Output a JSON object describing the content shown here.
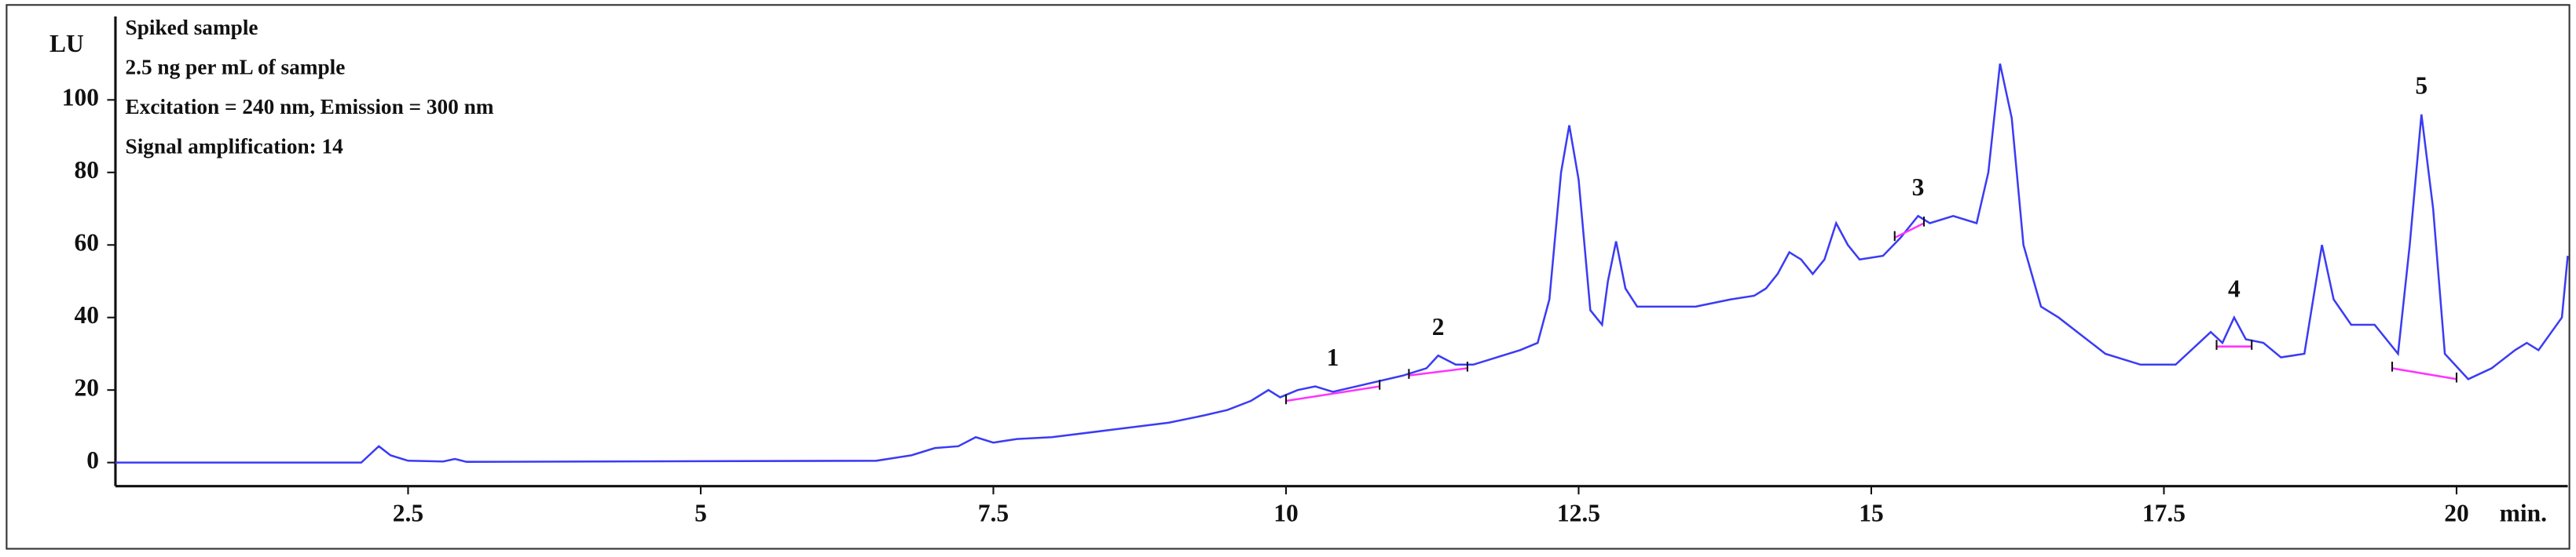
{
  "chart_data": {
    "type": "line",
    "y_label": "LU",
    "x_label": "min.",
    "annotations": [
      "Spiked sample",
      "2.5 ng per mL of sample",
      "Excitation = 240 nm, Emission = 300 nm",
      "Signal amplification: 14"
    ],
    "xlim": [
      0,
      20.95
    ],
    "ylim": [
      -6.5,
      123
    ],
    "xticks": [
      2.5,
      5,
      7.5,
      10,
      12.5,
      15,
      17.5,
      20
    ],
    "yticks": [
      0,
      20,
      40,
      60,
      80,
      100
    ],
    "series": [
      {
        "color": "#3b3bf5",
        "x": [
          0,
          2.1,
          2.2,
          2.25,
          2.35,
          2.5,
          2.8,
          2.9,
          3.0,
          6.5,
          6.8,
          7.0,
          7.2,
          7.35,
          7.5,
          7.7,
          8.0,
          8.5,
          9.0,
          9.3,
          9.5,
          9.7,
          9.85,
          9.95,
          10.1,
          10.25,
          10.4,
          10.6,
          11.0,
          11.2,
          11.3,
          11.45,
          11.6,
          11.8,
          12.0,
          12.15,
          12.25,
          12.35,
          12.42,
          12.5,
          12.6,
          12.7,
          12.75,
          12.82,
          12.9,
          13.0,
          13.5,
          13.8,
          14.0,
          14.1,
          14.2,
          14.3,
          14.4,
          14.5,
          14.6,
          14.7,
          14.8,
          14.9,
          15.1,
          15.25,
          15.4,
          15.5,
          15.7,
          15.9,
          16.0,
          16.1,
          16.2,
          16.3,
          16.45,
          16.6,
          16.8,
          17.0,
          17.3,
          17.6,
          17.8,
          17.9,
          18.0,
          18.1,
          18.2,
          18.35,
          18.5,
          18.7,
          18.85,
          18.95,
          19.1,
          19.3,
          19.5,
          19.6,
          19.7,
          19.8,
          19.9,
          20.1,
          20.3,
          20.5,
          20.6,
          20.7,
          20.9,
          20.95
        ],
        "values": [
          0,
          0,
          3,
          4.5,
          2,
          0.5,
          0.3,
          1,
          0.2,
          0.5,
          2,
          4,
          4.5,
          7,
          5.5,
          6.5,
          7,
          9,
          11,
          13,
          14.5,
          17,
          20,
          18,
          20,
          21,
          19.5,
          21,
          24,
          26,
          29.5,
          27,
          27,
          29,
          31,
          33,
          45,
          80,
          93,
          78,
          42,
          38,
          50,
          61,
          48,
          43,
          43,
          45,
          46,
          48,
          52,
          58,
          56,
          52,
          56,
          66,
          60,
          56,
          57,
          62,
          68,
          66,
          68,
          66,
          80,
          110,
          95,
          60,
          43,
          40,
          35,
          30,
          27,
          27,
          33,
          36,
          33,
          40,
          34,
          33,
          29,
          30,
          60,
          45,
          38,
          38,
          30,
          60,
          96,
          70,
          30,
          23,
          26,
          31,
          33,
          31,
          40,
          57
        ]
      }
    ],
    "baseline_color": "#ff33ff",
    "peaks": [
      {
        "label": "1",
        "baseline_x": [
          10.0,
          10.8
        ],
        "baseline_y": [
          17,
          21
        ]
      },
      {
        "label": "2",
        "baseline_x": [
          11.05,
          11.55
        ],
        "baseline_y": [
          24,
          26
        ]
      },
      {
        "label": "3",
        "baseline_x": [
          15.2,
          15.45
        ],
        "baseline_y": [
          62,
          66
        ]
      },
      {
        "label": "4",
        "baseline_x": [
          17.95,
          18.25
        ],
        "baseline_y": [
          32,
          32
        ]
      },
      {
        "label": "5",
        "baseline_x": [
          19.45,
          20.0
        ],
        "baseline_y": [
          26,
          23
        ]
      }
    ]
  }
}
